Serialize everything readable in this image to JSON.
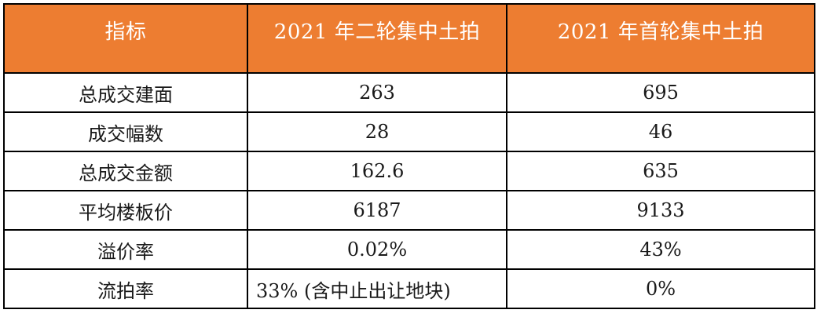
{
  "colors": {
    "accent": "#ED7D31",
    "border": "#000000",
    "header_text": "#FFFFFF",
    "body_text": "#1A1A1A"
  },
  "table": {
    "header": [
      "指标",
      "2021 年二轮集中土拍",
      "2021 年首轮集中土拍"
    ],
    "rows": [
      [
        "总成交建面",
        "263",
        "695"
      ],
      [
        "成交幅数",
        "28",
        "46"
      ],
      [
        "总成交金额",
        "162.6",
        "635"
      ],
      [
        "平均楼板价",
        "6187",
        "9133"
      ],
      [
        "溢价率",
        "0.02%",
        "43%"
      ],
      [
        "流拍率",
        "33% (含中止出让地块)",
        "0%"
      ]
    ]
  },
  "chart_data": {
    "type": "table",
    "title": "",
    "columns": [
      "指标",
      "2021 年二轮集中土拍",
      "2021 年首轮集中土拍"
    ],
    "rows": [
      {
        "指标": "总成交建面",
        "2021 年二轮集中土拍": 263,
        "2021 年首轮集中土拍": 695
      },
      {
        "指标": "成交幅数",
        "2021 年二轮集中土拍": 28,
        "2021 年首轮集中土拍": 46
      },
      {
        "指标": "总成交金额",
        "2021 年二轮集中土拍": 162.6,
        "2021 年首轮集中土拍": 635
      },
      {
        "指标": "平均楼板价",
        "2021 年二轮集中土拍": 6187,
        "2021 年首轮集中土拍": 9133
      },
      {
        "指标": "溢价率",
        "2021 年二轮集中土拍": "0.02%",
        "2021 年首轮集中土拍": "43%"
      },
      {
        "指标": "流拍率",
        "2021 年二轮集中土拍": "33% (含中止出让地块)",
        "2021 年首轮集中土拍": "0%"
      }
    ],
    "layout": {
      "header_fill": "#ED7D31",
      "grid": true,
      "legend": "none"
    }
  }
}
